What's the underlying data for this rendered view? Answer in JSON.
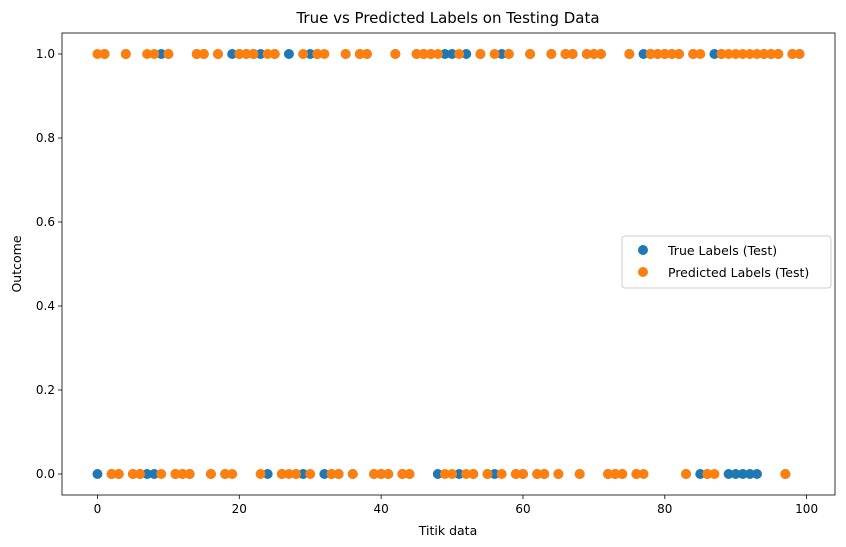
{
  "chart_data": {
    "type": "scatter",
    "title": "True vs Predicted Labels on Testing Data",
    "xlabel": "Titik data",
    "ylabel": "Outcome",
    "xlim": [
      -5,
      104
    ],
    "ylim": [
      -0.05,
      1.05
    ],
    "xticks": [
      0,
      20,
      40,
      60,
      80,
      100
    ],
    "xtick_labels": [
      "0",
      "20",
      "40",
      "60",
      "80",
      "100"
    ],
    "yticks": [
      0.0,
      0.2,
      0.4,
      0.6,
      0.8,
      1.0
    ],
    "ytick_labels": [
      "0.0",
      "0.2",
      "0.4",
      "0.6",
      "0.8",
      "1.0"
    ],
    "grid": false,
    "legend_position": "center-right",
    "series": [
      {
        "name": "True Labels (Test)",
        "color": "#1f77b4",
        "x": [
          0,
          1,
          2,
          3,
          4,
          5,
          6,
          7,
          8,
          9,
          10,
          11,
          12,
          13,
          14,
          15,
          16,
          17,
          18,
          19,
          20,
          21,
          22,
          23,
          24,
          25,
          26,
          27,
          28,
          29,
          30,
          31,
          32,
          33,
          34,
          35,
          36,
          37,
          38,
          39,
          40,
          41,
          42,
          43,
          44,
          45,
          46,
          47,
          48,
          49,
          50,
          51,
          52,
          53,
          54,
          55,
          56,
          57,
          58,
          59,
          60,
          61,
          62,
          63,
          64,
          65,
          66,
          67,
          68,
          69,
          70,
          71,
          72,
          73,
          74,
          75,
          76,
          77,
          78,
          79,
          80,
          81,
          82,
          83,
          84,
          85,
          86,
          87,
          88,
          89,
          90,
          91,
          92,
          93,
          94,
          95,
          96,
          97,
          98,
          99
        ],
        "y": [
          0,
          1,
          0,
          0,
          1,
          0,
          0,
          0,
          0,
          1,
          1,
          0,
          0,
          0,
          1,
          1,
          0,
          1,
          0,
          1,
          1,
          1,
          1,
          1,
          0,
          1,
          0,
          1,
          0,
          0,
          1,
          1,
          0,
          0,
          0,
          1,
          0,
          1,
          1,
          0,
          0,
          0,
          1,
          0,
          0,
          1,
          1,
          1,
          0,
          1,
          1,
          0,
          1,
          0,
          1,
          0,
          0,
          1,
          1,
          0,
          0,
          1,
          0,
          0,
          1,
          0,
          1,
          1,
          0,
          1,
          1,
          1,
          0,
          0,
          0,
          1,
          0,
          1,
          1,
          1,
          1,
          1,
          1,
          0,
          1,
          0,
          0,
          1,
          1,
          0,
          0,
          0,
          0,
          0,
          1,
          1,
          1,
          0,
          1,
          1
        ]
      },
      {
        "name": "Predicted Labels (Test)",
        "color": "#ff7f0e",
        "x": [
          0,
          1,
          2,
          3,
          4,
          5,
          6,
          7,
          8,
          9,
          10,
          11,
          12,
          13,
          14,
          15,
          16,
          17,
          18,
          19,
          20,
          21,
          22,
          23,
          24,
          25,
          26,
          27,
          28,
          29,
          30,
          31,
          32,
          33,
          34,
          35,
          36,
          37,
          38,
          39,
          40,
          41,
          42,
          43,
          44,
          45,
          46,
          47,
          48,
          49,
          50,
          51,
          52,
          53,
          54,
          55,
          56,
          57,
          58,
          59,
          60,
          61,
          62,
          63,
          64,
          65,
          66,
          67,
          68,
          69,
          70,
          71,
          72,
          73,
          74,
          75,
          76,
          77,
          78,
          79,
          80,
          81,
          82,
          83,
          84,
          85,
          86,
          87,
          88,
          89,
          90,
          91,
          92,
          93,
          94,
          95,
          96,
          97,
          98,
          99
        ],
        "y": [
          1,
          1,
          0,
          0,
          1,
          0,
          0,
          1,
          1,
          0,
          1,
          0,
          0,
          0,
          1,
          1,
          0,
          1,
          0,
          0,
          1,
          1,
          1,
          0,
          1,
          1,
          0,
          0,
          0,
          1,
          0,
          1,
          1,
          0,
          0,
          1,
          0,
          1,
          1,
          0,
          0,
          0,
          1,
          0,
          0,
          1,
          1,
          1,
          1,
          0,
          0,
          1,
          0,
          0,
          1,
          0,
          1,
          0,
          1,
          0,
          0,
          1,
          0,
          0,
          1,
          0,
          1,
          1,
          0,
          1,
          1,
          1,
          0,
          0,
          0,
          1,
          0,
          0,
          1,
          1,
          1,
          1,
          1,
          0,
          1,
          1,
          0,
          0,
          1,
          1,
          1,
          1,
          1,
          1,
          1,
          1,
          1,
          0,
          1,
          1
        ]
      }
    ]
  }
}
